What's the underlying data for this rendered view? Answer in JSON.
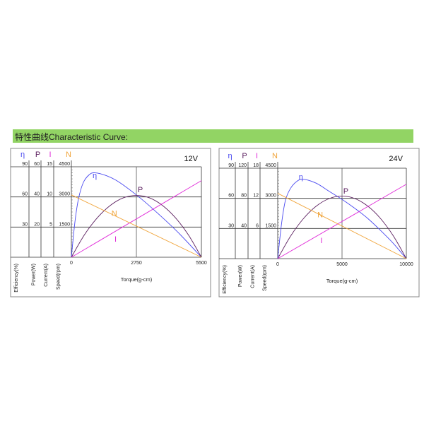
{
  "header": {
    "title": "特性曲线Characteristic Curve:"
  },
  "colors": {
    "efficiency": "#4a4af0",
    "power": "#5c2060",
    "current": "#e02ad8",
    "speed": "#f0a43a",
    "header_bg": "#92d464",
    "grid": "#333333"
  },
  "chart_data": [
    {
      "type": "line",
      "title": "12V",
      "xlabel": "Torque(g-cm)",
      "xlim": [
        0,
        5500
      ],
      "xticks": [
        "0",
        "2750",
        "5500"
      ],
      "axes": [
        {
          "symbol": "η",
          "label": "Efficiency(%)",
          "ticks": [
            "30",
            "60",
            "90"
          ],
          "max": 90,
          "color_key": "efficiency"
        },
        {
          "symbol": "P",
          "label": "Power(W)",
          "ticks": [
            "20",
            "40",
            "60"
          ],
          "max": 60,
          "color_key": "power"
        },
        {
          "symbol": "I",
          "label": "Current(A)",
          "ticks": [
            "5",
            "10",
            "15"
          ],
          "max": 15,
          "color_key": "current"
        },
        {
          "symbol": "N",
          "label": "Speed(rpm)",
          "ticks": [
            "1500",
            "3000",
            "4500"
          ],
          "max": 4500,
          "color_key": "speed"
        }
      ],
      "series": [
        {
          "name": "η",
          "axis": 0,
          "points": [
            [
              0,
              0
            ],
            [
              150,
              35
            ],
            [
              300,
              58
            ],
            [
              500,
              74
            ],
            [
              750,
              82
            ],
            [
              1000,
              84
            ],
            [
              1500,
              81
            ],
            [
              2000,
              75
            ],
            [
              2750,
              62
            ],
            [
              3500,
              47
            ],
            [
              4500,
              25
            ],
            [
              5500,
              0
            ]
          ]
        },
        {
          "name": "P",
          "axis": 1,
          "points": [
            [
              0,
              0
            ],
            [
              550,
              14.8
            ],
            [
              1100,
              26.2
            ],
            [
              1650,
              34.4
            ],
            [
              2200,
              39.4
            ],
            [
              2750,
              41
            ],
            [
              3300,
              39.4
            ],
            [
              3850,
              34.4
            ],
            [
              4400,
              26.2
            ],
            [
              4950,
              14.8
            ],
            [
              5500,
              0
            ]
          ]
        },
        {
          "name": "I",
          "axis": 2,
          "points": [
            [
              0,
              0
            ],
            [
              5500,
              12.7
            ]
          ]
        },
        {
          "name": "N",
          "axis": 3,
          "points": [
            [
              0,
              3100
            ],
            [
              5500,
              0
            ]
          ]
        }
      ]
    },
    {
      "type": "line",
      "title": "24V",
      "xlabel": "Torque(g-cm)",
      "xlim": [
        0,
        10000
      ],
      "xticks": [
        "0",
        "5000",
        "10000"
      ],
      "axes": [
        {
          "symbol": "η",
          "label": "Efficiency(%)",
          "ticks": [
            "30",
            "60",
            "90"
          ],
          "max": 90,
          "color_key": "efficiency"
        },
        {
          "symbol": "P",
          "label": "Power(W)",
          "ticks": [
            "40",
            "80",
            "120"
          ],
          "max": 120,
          "color_key": "power"
        },
        {
          "symbol": "I",
          "label": "Current(A)",
          "ticks": [
            "6",
            "12",
            "18"
          ],
          "max": 18,
          "color_key": "current"
        },
        {
          "symbol": "N",
          "label": "Speed(rpm)",
          "ticks": [
            "1500",
            "3000",
            "4500"
          ],
          "max": 4500,
          "color_key": "speed"
        }
      ],
      "series": [
        {
          "name": "η",
          "axis": 0,
          "points": [
            [
              0,
              0
            ],
            [
              300,
              35
            ],
            [
              600,
              58
            ],
            [
              1000,
              70
            ],
            [
              1500,
              77
            ],
            [
              2000,
              79
            ],
            [
              3000,
              75
            ],
            [
              4000,
              67
            ],
            [
              5000,
              59
            ],
            [
              6000,
              50
            ],
            [
              7000,
              40
            ],
            [
              8000,
              28
            ],
            [
              9000,
              15
            ],
            [
              10000,
              0
            ]
          ]
        },
        {
          "name": "P",
          "axis": 1,
          "points": [
            [
              0,
              0
            ],
            [
              1000,
              29.9
            ],
            [
              2000,
              53.1
            ],
            [
              3000,
              69.7
            ],
            [
              4000,
              79.7
            ],
            [
              5000,
              83
            ],
            [
              6000,
              79.7
            ],
            [
              7000,
              69.7
            ],
            [
              8000,
              53.1
            ],
            [
              9000,
              29.9
            ],
            [
              10000,
              0
            ]
          ]
        },
        {
          "name": "I",
          "axis": 2,
          "points": [
            [
              0,
              0
            ],
            [
              10000,
              14.8
            ]
          ]
        },
        {
          "name": "N",
          "axis": 3,
          "points": [
            [
              0,
              3250
            ],
            [
              10000,
              0
            ]
          ]
        }
      ]
    }
  ]
}
